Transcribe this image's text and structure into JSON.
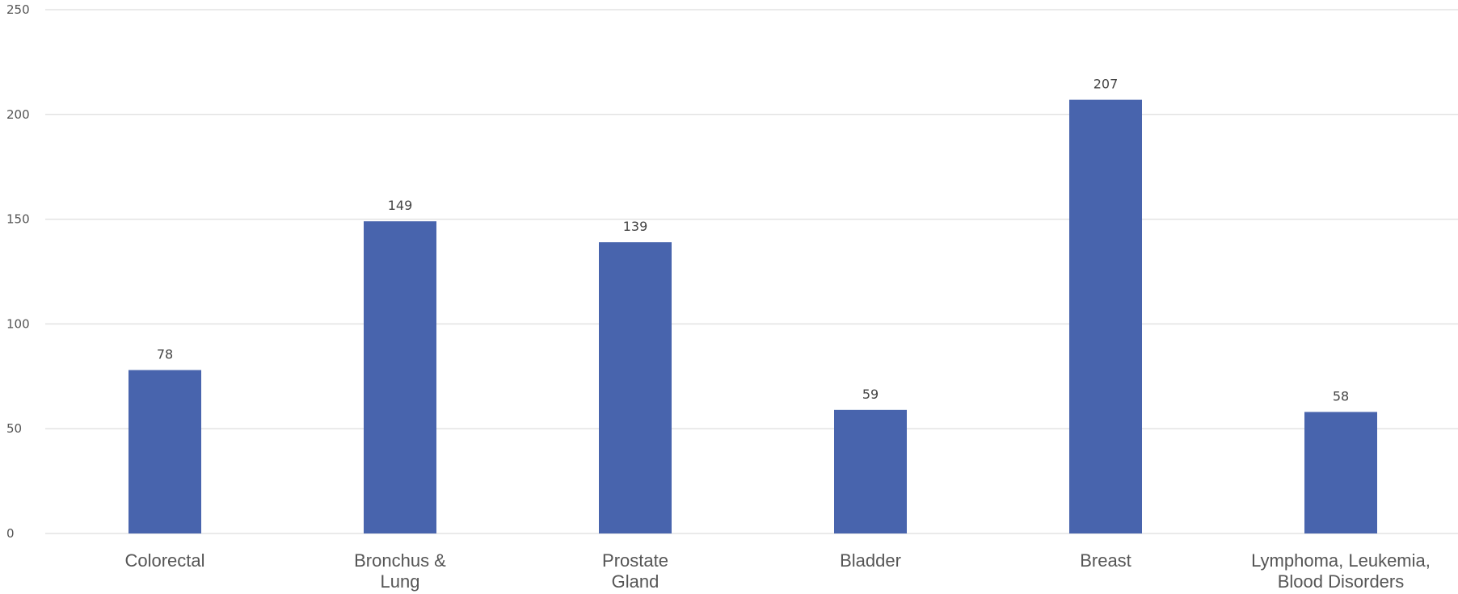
{
  "chart_data": {
    "type": "bar",
    "title": "",
    "xlabel": "",
    "ylabel": "",
    "categories": [
      [
        "Colorectal"
      ],
      [
        "Bronchus &",
        "Lung"
      ],
      [
        "Prostate",
        "Gland"
      ],
      [
        "Bladder"
      ],
      [
        "Breast"
      ],
      [
        "Lymphoma, Leukemia,",
        "Blood Disorders"
      ]
    ],
    "values": [
      78,
      149,
      139,
      59,
      207,
      58
    ],
    "value_labels": [
      "78",
      "149",
      "139",
      "59",
      "207",
      "58"
    ],
    "ylim": [
      0,
      250
    ],
    "yticks": [
      0,
      50,
      100,
      150,
      200,
      250
    ],
    "ytick_labels": [
      "0",
      "50",
      "100",
      "150",
      "200",
      "250"
    ],
    "grid": true,
    "legend": "none",
    "bar_color": "#4864ad",
    "grid_color": "#e3e3e3"
  }
}
